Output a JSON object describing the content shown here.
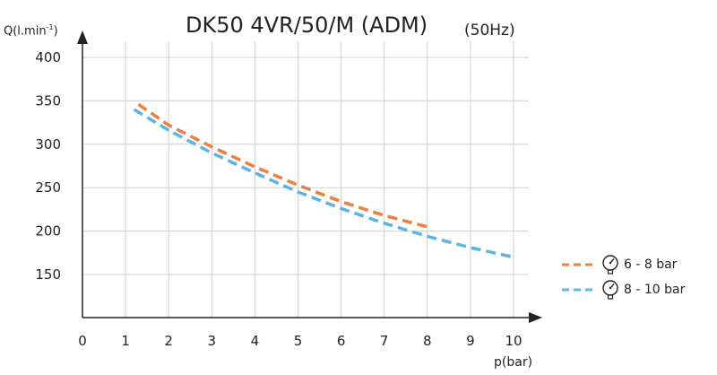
{
  "colors": {
    "series_6_8": "#f07f3c",
    "series_8_10": "#5ab4e5",
    "grid": "#cfcfcf",
    "axis": "#222222",
    "text": "#222222"
  },
  "icons": {
    "legend": "pressure-gauge-icon"
  },
  "chart_data": {
    "type": "line",
    "title": "DK50 4VR/50/M (ADM)",
    "subtitle": "(50Hz)",
    "xlabel": "p(bar)",
    "ylabel": "Q(l.min",
    "ylabel_superscript": "-1",
    "ylabel_close": ")",
    "xlim": [
      0,
      10
    ],
    "ylim": [
      100,
      400
    ],
    "xticks": [
      "0",
      "1",
      "2",
      "3",
      "4",
      "5",
      "6",
      "7",
      "8",
      "9",
      "10"
    ],
    "yticks": [
      "150",
      "200",
      "250",
      "300",
      "350",
      "400"
    ],
    "grid": true,
    "legend_position": "right",
    "series": [
      {
        "name": "6 - 8 bar",
        "x": [
          1.3,
          2,
          3,
          4,
          5,
          6,
          7,
          8
        ],
        "values": [
          346,
          322,
          297,
          274,
          253,
          234,
          218,
          205
        ]
      },
      {
        "name": "8 - 10 bar",
        "x": [
          1.2,
          2,
          3,
          4,
          5,
          6,
          7,
          8,
          9,
          10
        ],
        "values": [
          340,
          316,
          290,
          267,
          245,
          226,
          209,
          194,
          181,
          170
        ]
      }
    ]
  }
}
